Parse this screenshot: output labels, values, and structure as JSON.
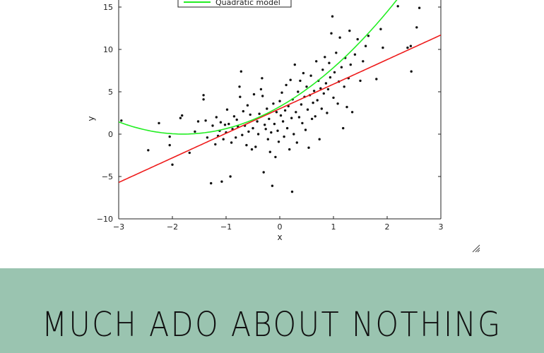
{
  "colors": {
    "banner_bg": "#9ac4b0",
    "linear_line": "#ee1b1b",
    "quadratic_line": "#22ee22",
    "points": "#111111"
  },
  "banner": {
    "title": "MUCH ADO ABOUT NOTHING"
  },
  "resize_icon": "resize-grip-icon",
  "chart_data": {
    "type": "scatter",
    "xlabel": "x",
    "ylabel": "y",
    "xlim": [
      -3,
      3
    ],
    "ylim": [
      -10,
      15
    ],
    "xticks": [
      -3,
      -2,
      -1,
      0,
      1,
      2,
      3
    ],
    "yticks": [
      -10,
      -5,
      0,
      5,
      10,
      15
    ],
    "xtick_labels": [
      "−3",
      "−2",
      "−1",
      "0",
      "1",
      "2",
      "3"
    ],
    "ytick_labels": [
      "−10",
      "−5",
      "0",
      "5",
      "10",
      "15"
    ],
    "grid": false,
    "legend": {
      "placement": "top-center",
      "entries": [
        {
          "label": "Quadratic model",
          "series": "quadratic"
        }
      ]
    },
    "lines": [
      {
        "id": "linear",
        "kind": "linear",
        "intercept": 3.0,
        "slope": 2.9
      },
      {
        "id": "quadratic",
        "kind": "quadratic",
        "a": 1.0,
        "b": 3.6,
        "c": 3.25
      }
    ],
    "points": [
      [
        -2.95,
        1.6
      ],
      [
        -2.45,
        -1.9
      ],
      [
        -2.25,
        1.3
      ],
      [
        -2.05,
        -0.3
      ],
      [
        -2.05,
        -1.3
      ],
      [
        -2.0,
        -3.6
      ],
      [
        -1.85,
        1.9
      ],
      [
        -1.82,
        2.2
      ],
      [
        -1.68,
        -2.2
      ],
      [
        -1.58,
        0.3
      ],
      [
        -1.52,
        1.5
      ],
      [
        -1.42,
        4.6
      ],
      [
        -1.42,
        4.1
      ],
      [
        -1.38,
        1.6
      ],
      [
        -1.35,
        -0.4
      ],
      [
        -1.28,
        -5.8
      ],
      [
        -1.25,
        1.0
      ],
      [
        -1.2,
        -1.2
      ],
      [
        -1.18,
        2.0
      ],
      [
        -1.15,
        -0.2
      ],
      [
        -1.12,
        0.4
      ],
      [
        -1.1,
        1.4
      ],
      [
        -1.08,
        -5.6
      ],
      [
        -1.05,
        -0.6
      ],
      [
        -1.02,
        1.1
      ],
      [
        -1.0,
        0.2
      ],
      [
        -0.98,
        2.9
      ],
      [
        -0.95,
        1.2
      ],
      [
        -0.92,
        -5.0
      ],
      [
        -0.9,
        -1.0
      ],
      [
        -0.88,
        0.6
      ],
      [
        -0.85,
        2.1
      ],
      [
        -0.82,
        -0.4
      ],
      [
        -0.8,
        1.7
      ],
      [
        -0.78,
        0.9
      ],
      [
        -0.75,
        5.6
      ],
      [
        -0.74,
        4.4
      ],
      [
        -0.72,
        7.4
      ],
      [
        -0.7,
        -0.1
      ],
      [
        -0.68,
        2.7
      ],
      [
        -0.65,
        1.0
      ],
      [
        -0.62,
        -1.3
      ],
      [
        -0.6,
        3.4
      ],
      [
        -0.58,
        0.3
      ],
      [
        -0.55,
        2.3
      ],
      [
        -0.52,
        -1.8
      ],
      [
        -0.5,
        0.7
      ],
      [
        -0.48,
        4.7
      ],
      [
        -0.45,
        -1.5
      ],
      [
        -0.42,
        1.5
      ],
      [
        -0.4,
        0.0
      ],
      [
        -0.38,
        2.4
      ],
      [
        -0.35,
        5.3
      ],
      [
        -0.33,
        6.6
      ],
      [
        -0.32,
        4.5
      ],
      [
        -0.3,
        -4.5
      ],
      [
        -0.28,
        1.1
      ],
      [
        -0.26,
        0.6
      ],
      [
        -0.24,
        3.0
      ],
      [
        -0.22,
        -0.6
      ],
      [
        -0.2,
        1.8
      ],
      [
        -0.18,
        -2.1
      ],
      [
        -0.16,
        0.2
      ],
      [
        -0.14,
        -6.1
      ],
      [
        -0.12,
        3.6
      ],
      [
        -0.1,
        1.2
      ],
      [
        -0.08,
        -2.7
      ],
      [
        -0.06,
        2.6
      ],
      [
        -0.04,
        0.4
      ],
      [
        -0.02,
        -0.9
      ],
      [
        0.0,
        3.9
      ],
      [
        0.02,
        2.2
      ],
      [
        0.04,
        4.9
      ],
      [
        0.06,
        1.5
      ],
      [
        0.08,
        -0.3
      ],
      [
        0.1,
        2.8
      ],
      [
        0.12,
        5.8
      ],
      [
        0.14,
        0.7
      ],
      [
        0.16,
        3.3
      ],
      [
        0.18,
        -1.8
      ],
      [
        0.2,
        6.4
      ],
      [
        0.22,
        1.9
      ],
      [
        0.23,
        -6.8
      ],
      [
        0.24,
        4.1
      ],
      [
        0.26,
        0.0
      ],
      [
        0.28,
        8.2
      ],
      [
        0.3,
        2.6
      ],
      [
        0.32,
        -1.0
      ],
      [
        0.34,
        5.0
      ],
      [
        0.36,
        2.0
      ],
      [
        0.38,
        6.3
      ],
      [
        0.4,
        3.5
      ],
      [
        0.42,
        1.3
      ],
      [
        0.44,
        7.2
      ],
      [
        0.46,
        4.4
      ],
      [
        0.48,
        0.5
      ],
      [
        0.5,
        5.6
      ],
      [
        0.52,
        2.9
      ],
      [
        0.54,
        -1.6
      ],
      [
        0.56,
        4.6
      ],
      [
        0.58,
        6.9
      ],
      [
        0.6,
        1.8
      ],
      [
        0.62,
        3.7
      ],
      [
        0.64,
        5.1
      ],
      [
        0.66,
        2.1
      ],
      [
        0.68,
        8.6
      ],
      [
        0.7,
        4.0
      ],
      [
        0.72,
        6.3
      ],
      [
        0.74,
        -0.6
      ],
      [
        0.76,
        5.4
      ],
      [
        0.78,
        3.0
      ],
      [
        0.8,
        7.6
      ],
      [
        0.82,
        4.8
      ],
      [
        0.84,
        9.1
      ],
      [
        0.86,
        6.0
      ],
      [
        0.88,
        2.5
      ],
      [
        0.9,
        5.3
      ],
      [
        0.92,
        8.4
      ],
      [
        0.94,
        6.7
      ],
      [
        0.96,
        11.9
      ],
      [
        0.98,
        13.9
      ],
      [
        1.0,
        4.3
      ],
      [
        1.02,
        7.3
      ],
      [
        1.05,
        9.6
      ],
      [
        1.08,
        3.6
      ],
      [
        1.1,
        6.2
      ],
      [
        1.12,
        11.4
      ],
      [
        1.15,
        7.9
      ],
      [
        1.18,
        0.7
      ],
      [
        1.2,
        5.6
      ],
      [
        1.22,
        9.0
      ],
      [
        1.25,
        3.2
      ],
      [
        1.28,
        6.6
      ],
      [
        1.3,
        12.2
      ],
      [
        1.32,
        8.2
      ],
      [
        1.35,
        2.6
      ],
      [
        1.4,
        9.4
      ],
      [
        1.45,
        11.2
      ],
      [
        1.5,
        6.3
      ],
      [
        1.55,
        8.6
      ],
      [
        1.6,
        10.4
      ],
      [
        1.65,
        11.6
      ],
      [
        1.8,
        6.5
      ],
      [
        1.88,
        12.4
      ],
      [
        1.92,
        10.2
      ],
      [
        2.2,
        15.1
      ],
      [
        2.38,
        10.2
      ],
      [
        2.44,
        10.4
      ],
      [
        2.45,
        7.4
      ],
      [
        2.55,
        12.6
      ],
      [
        2.6,
        14.9
      ]
    ]
  }
}
